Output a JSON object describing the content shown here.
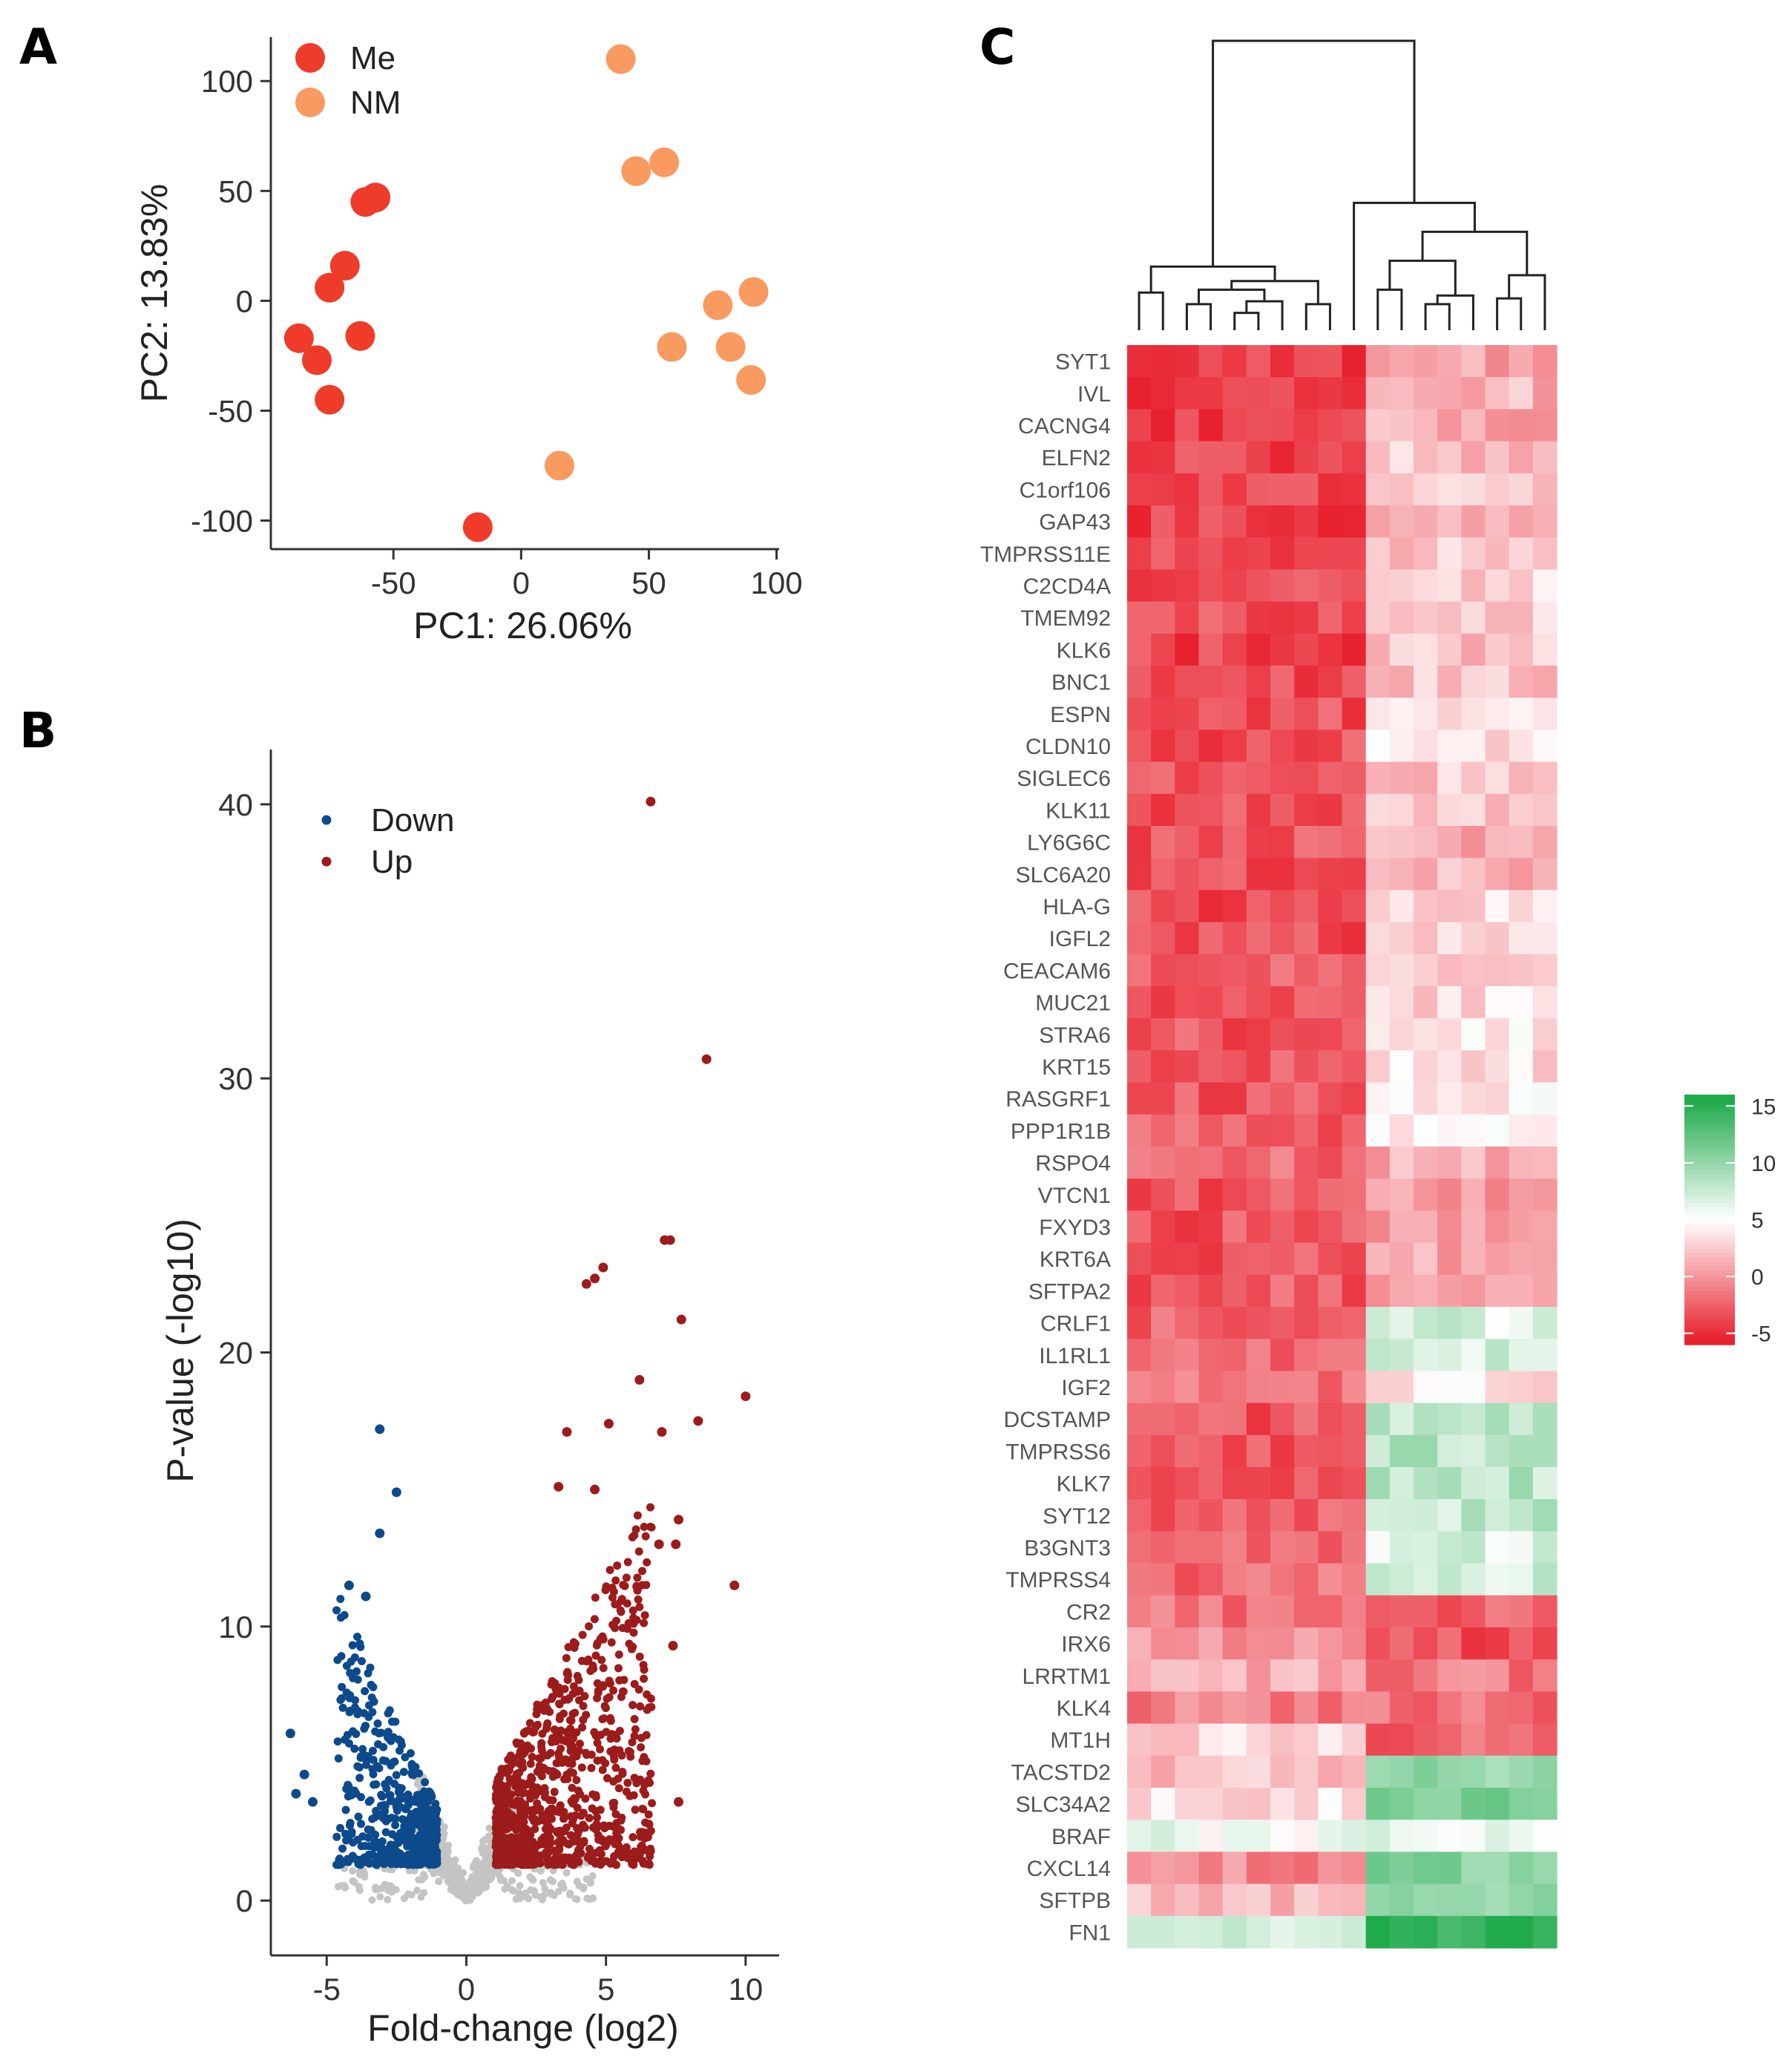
{
  "panels": {
    "a": "A",
    "b": "B",
    "c": "C"
  },
  "chart_data": [
    {
      "id": "A",
      "type": "scatter",
      "xlabel": "PC1: 26.06%",
      "ylabel": "PC2: 13.83%",
      "xlim": [
        -98,
        101
      ],
      "ylim": [
        -113,
        120
      ],
      "xticks": [
        -50,
        0,
        50,
        100
      ],
      "yticks": [
        100,
        50,
        0,
        -50,
        -100
      ],
      "grid": false,
      "legend": "top-left",
      "series": [
        {
          "name": "Me",
          "color": "#ee3b2a",
          "points": [
            [
              -17,
              -103
            ],
            [
              -87,
              -17
            ],
            [
              -80,
              -27
            ],
            [
              -75,
              -45
            ],
            [
              -63,
              -16
            ],
            [
              -75,
              6
            ],
            [
              -69,
              16
            ],
            [
              -61,
              45
            ],
            [
              -57,
              47
            ]
          ]
        },
        {
          "name": "NM",
          "color": "#f99a60",
          "points": [
            [
              39,
              110
            ],
            [
              45,
              59
            ],
            [
              56,
              63
            ],
            [
              15,
              -75
            ],
            [
              59,
              -21
            ],
            [
              77,
              -2
            ],
            [
              82,
              -21
            ],
            [
              91,
              4
            ],
            [
              90,
              -36
            ]
          ]
        }
      ]
    },
    {
      "id": "B",
      "type": "scatter",
      "xlabel": "Fold-change (log2)",
      "ylabel": "P-value (-log10)",
      "xlim": [
        -7,
        11.2
      ],
      "ylim": [
        -2,
        42
      ],
      "xticks": [
        -5,
        0,
        5,
        10
      ],
      "yticks": [
        0,
        10,
        20,
        30,
        40
      ],
      "grid": false,
      "legend": "top-left",
      "series": [
        {
          "name": "Down",
          "color": "#0d4a8c",
          "points": [
            [
              -3.1,
              17.2
            ],
            [
              -2.5,
              14.9
            ],
            [
              -3.1,
              13.4
            ],
            [
              -4.2,
              11.5
            ],
            [
              -3.6,
              11.1
            ],
            [
              -6.3,
              6.1
            ],
            [
              -5.8,
              4.6
            ],
            [
              -6.1,
              3.9
            ],
            [
              -5.5,
              3.6
            ]
          ]
        },
        {
          "name": "Up",
          "color": "#9c1b1b",
          "points": [
            [
              6.6,
              40.1
            ],
            [
              8.6,
              30.7
            ],
            [
              7.1,
              24.1
            ],
            [
              7.3,
              24.1
            ],
            [
              4.9,
              23.1
            ],
            [
              4.6,
              22.7
            ],
            [
              4.3,
              22.5
            ],
            [
              7.7,
              21.2
            ],
            [
              6.2,
              19.0
            ],
            [
              10.0,
              18.4
            ],
            [
              3.6,
              17.1
            ],
            [
              5.1,
              17.4
            ],
            [
              8.3,
              17.5
            ],
            [
              7.0,
              17.1
            ],
            [
              4.6,
              15.0
            ],
            [
              3.3,
              15.1
            ],
            [
              9.6,
              11.5
            ],
            [
              7.6,
              13.9
            ],
            [
              6.9,
              13.0
            ],
            [
              7.5,
              13.0
            ],
            [
              7.4,
              9.3
            ],
            [
              7.6,
              3.6
            ]
          ]
        }
      ],
      "background_color": "#c4c4c4"
    },
    {
      "id": "C",
      "type": "heatmap",
      "genes": [
        "SYT1",
        "IVL",
        "CACNG4",
        "ELFN2",
        "C1orf106",
        "GAP43",
        "TMPRSS11E",
        "C2CD4A",
        "TMEM92",
        "KLK6",
        "BNC1",
        "ESPN",
        "CLDN10",
        "SIGLEC6",
        "KLK11",
        "LY6G6C",
        "SLC6A20",
        "HLA-G",
        "IGFL2",
        "CEACAM6",
        "MUC21",
        "STRA6",
        "KRT15",
        "RASGRF1",
        "PPP1R1B",
        "RSPO4",
        "VTCN1",
        "FXYD3",
        "KRT6A",
        "SFTPA2",
        "CRLF1",
        "IL1RL1",
        "IGF2",
        "DCSTAMP",
        "TMPRSS6",
        "KLK7",
        "SYT12",
        "B3GNT3",
        "TMPRSS4",
        "CR2",
        "IRX6",
        "LRRTM1",
        "KLK4",
        "MT1H",
        "TACSTD2",
        "SLC34A2",
        "BRAF",
        "CXCL14",
        "SFTPB",
        "FN1"
      ],
      "n_samples": 18,
      "colorbar": {
        "ticks": [
          15,
          10,
          5,
          0,
          -5
        ],
        "range": [
          -6,
          16
        ],
        "low": "#e8212e",
        "mid": "#ffffff",
        "high": "#1faa4c"
      },
      "groups": [
        {
          "name": "left",
          "columns": [
            0,
            1,
            2,
            3,
            4,
            5,
            6,
            7,
            8,
            9
          ],
          "row_means": [
            -4.1,
            -4.3,
            -4.1,
            -3.8,
            -3.6,
            -3.9,
            -3.9,
            -3.4,
            -3.5,
            -4.0,
            -3.8,
            -3.4,
            -3.4,
            -3.4,
            -3.4,
            -3.2,
            -3.3,
            -3.5,
            -3.6,
            -2.9,
            -3.1,
            -2.9,
            -2.8,
            -2.9,
            -2.6,
            -2.0,
            -3.2,
            -3.1,
            -3.2,
            -2.9,
            -2.2,
            -2.4,
            -1.8,
            -3.1,
            -3.0,
            -2.7,
            -2.6,
            -2.5,
            -2.0,
            -1.8,
            -0.3,
            1.3,
            -1.1,
            3.2,
            2.0,
            3.6,
            5.5,
            -0.5,
            2.0,
            7.8
          ]
        },
        {
          "name": "right",
          "columns": [
            10,
            11,
            12,
            13,
            14,
            15,
            16,
            17
          ],
          "row_means": [
            0.6,
            1.4,
            0.9,
            2.2,
            2.2,
            1.2,
            2.2,
            2.9,
            2.6,
            2.2,
            2.2,
            3.4,
            3.4,
            2.4,
            2.6,
            1.0,
            1.4,
            2.9,
            2.9,
            3.3,
            3.1,
            3.9,
            3.4,
            4.1,
            3.8,
            1.3,
            0.6,
            0.5,
            0.8,
            0.9,
            6.8,
            6.6,
            3.6,
            8.0,
            8.2,
            8.2,
            7.9,
            6.6,
            7.3,
            -2.6,
            -3.1,
            -1.4,
            -1.9,
            -2.4,
            10.2,
            10.9,
            5.8,
            10.2,
            10.7,
            14.5
          ]
        }
      ]
    }
  ]
}
